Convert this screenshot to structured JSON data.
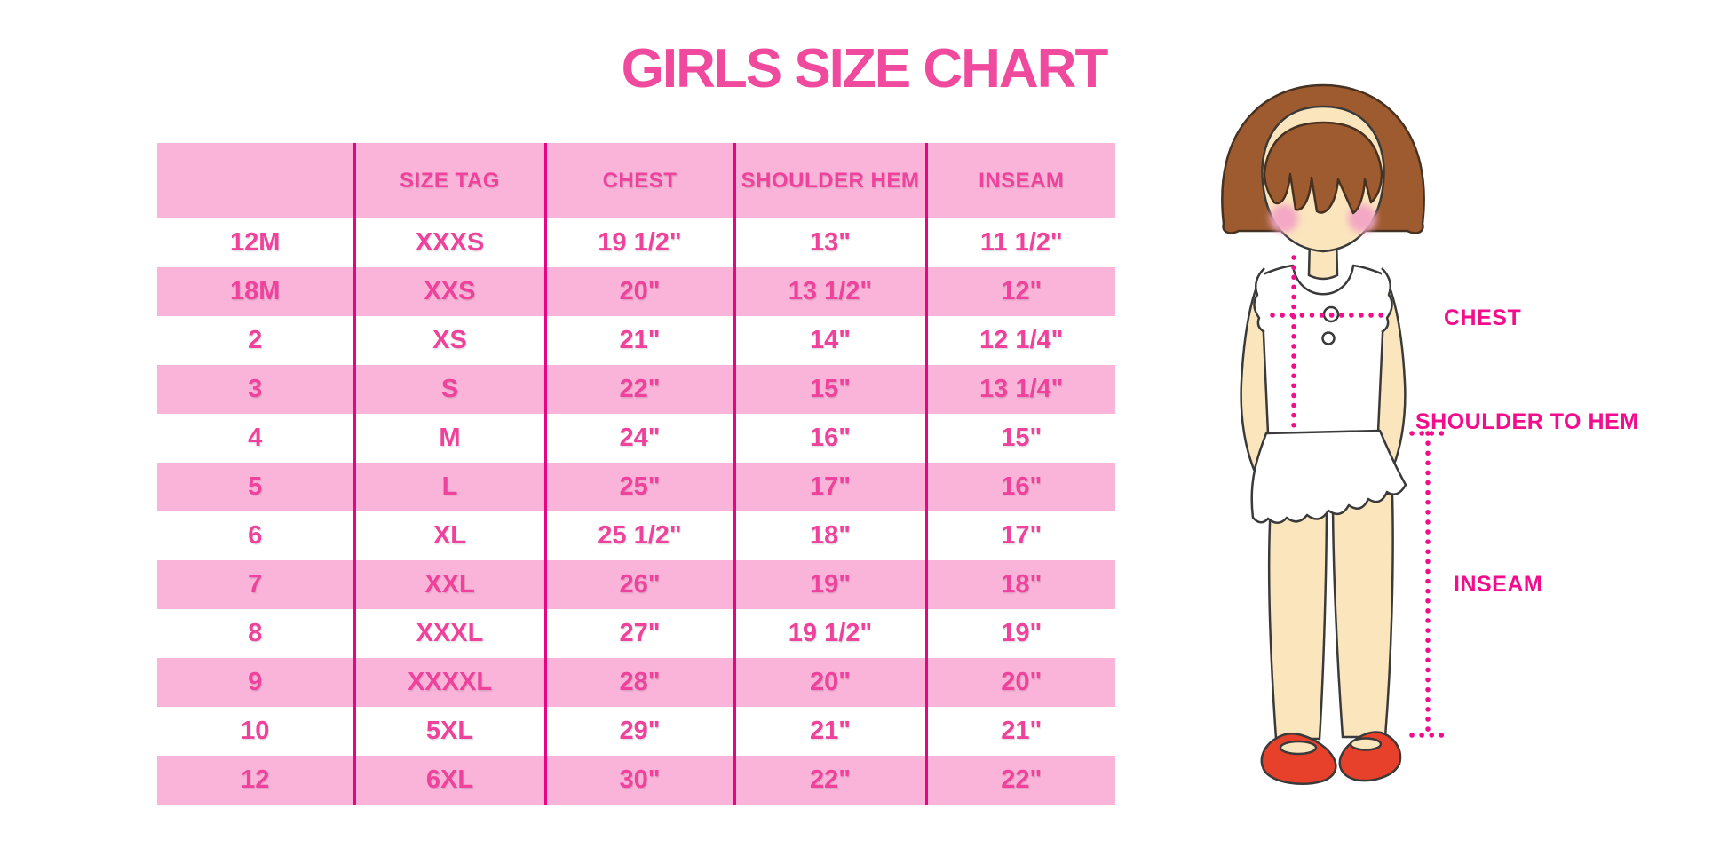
{
  "title": "GIRLS SIZE CHART",
  "chart_data": {
    "type": "table",
    "title": "GIRLS SIZE CHART",
    "columns": [
      "",
      "SIZE TAG",
      "CHEST",
      "SHOULDER HEM",
      "INSEAM"
    ],
    "rows": [
      [
        "12M",
        "XXXS",
        "19 1/2\"",
        "13\"",
        "11 1/2\""
      ],
      [
        "18M",
        "XXS",
        "20\"",
        "13 1/2\"",
        "12\""
      ],
      [
        "2",
        "XS",
        "21\"",
        "14\"",
        "12 1/4\""
      ],
      [
        "3",
        "S",
        "22\"",
        "15\"",
        "13 1/4\""
      ],
      [
        "4",
        "M",
        "24\"",
        "16\"",
        "15\""
      ],
      [
        "5",
        "L",
        "25\"",
        "17\"",
        "16\""
      ],
      [
        "6",
        "XL",
        "25 1/2\"",
        "18\"",
        "17\""
      ],
      [
        "7",
        "XXL",
        "26\"",
        "19\"",
        "18\""
      ],
      [
        "8",
        "XXXL",
        "27\"",
        "19 1/2\"",
        "19\""
      ],
      [
        "9",
        "XXXXL",
        "28\"",
        "20\"",
        "20\""
      ],
      [
        "10",
        "5XL",
        "29\"",
        "21\"",
        "21\""
      ],
      [
        "12",
        "6XL",
        "30\"",
        "22\"",
        "22\""
      ]
    ]
  },
  "figure": {
    "labels": {
      "chest": "CHEST",
      "shoulder_to_hem": "SHOULDER TO HEM",
      "inseam": "INSEAM"
    }
  },
  "colors": {
    "title_pink": "#EF4A9D",
    "table_text_pink": "#EF429C",
    "row_pink": "#FAB4D9",
    "divider_magenta": "#E60683",
    "label_magenta": "#F20D8C",
    "skin": "#FBE5BD",
    "hair_brown": "#9E5B30",
    "blush_pink": "#F3A8C5",
    "shoe_red": "#E8412B",
    "outline_dark": "#3A3A3A"
  }
}
